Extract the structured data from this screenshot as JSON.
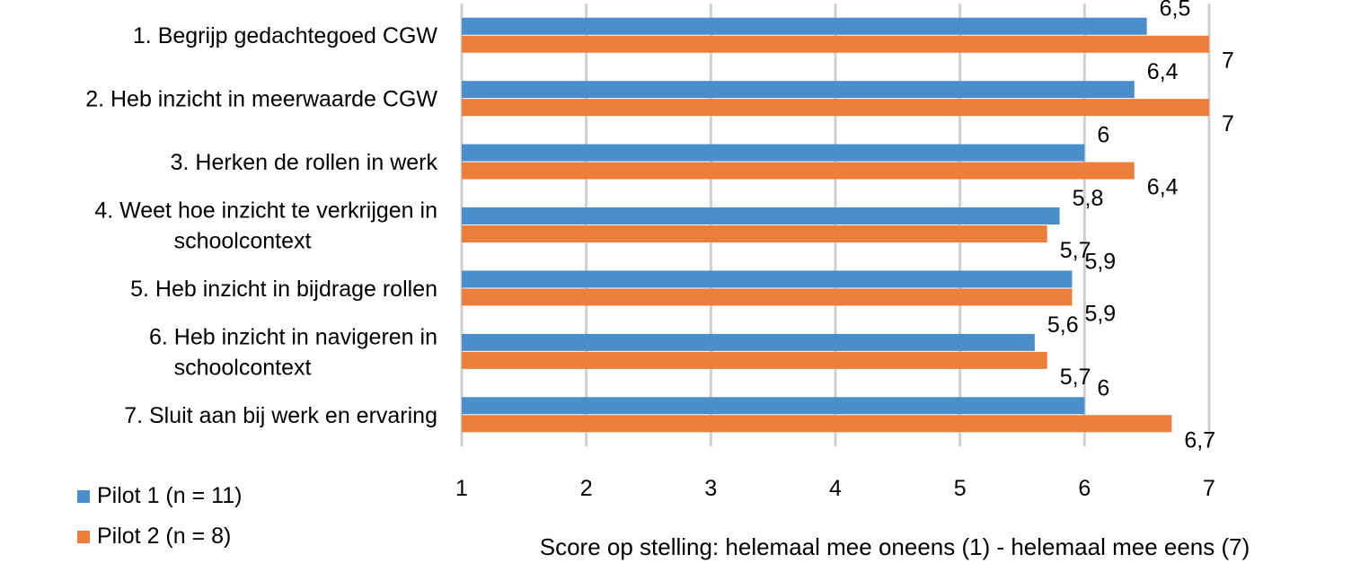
{
  "chart_data": {
    "type": "bar",
    "orientation": "horizontal",
    "categories": [
      "1. Begrijp gedachtegoed CGW",
      "2. Heb inzicht in meerwaarde CGW",
      "3. Herken de rollen in werk",
      [
        "4. Weet hoe inzicht te verkrijgen in",
        "schoolcontext"
      ],
      "5. Heb inzicht in bijdrage rollen",
      [
        "6. Heb inzicht in navigeren in",
        "schoolcontext"
      ],
      "7. Sluit aan bij werk en ervaring"
    ],
    "series": [
      {
        "name": "Pilot 1 (n = 11)",
        "color": "#4a8ecb",
        "values": [
          6.5,
          6.4,
          6,
          5.8,
          5.9,
          5.6,
          6
        ],
        "labels": [
          "6,5",
          "6,4",
          "6",
          "5,8",
          "5,9",
          "5,6",
          "6"
        ]
      },
      {
        "name": "Pilot 2 (n = 8)",
        "color": "#ec7d3a",
        "values": [
          7,
          7,
          6.4,
          5.7,
          5.9,
          5.7,
          6.7
        ],
        "labels": [
          "7",
          "7",
          "6,4",
          "5,7",
          "5,9",
          "5,7",
          "6,7"
        ]
      }
    ],
    "xlim": [
      1,
      7
    ],
    "xticks": [
      "1",
      "2",
      "3",
      "4",
      "5",
      "6",
      "7"
    ],
    "xlabel": "Score op stelling: helemaal mee oneens (1) - helemaal mee eens (7)",
    "title": "",
    "grid": true,
    "gridColor": "#d0d0d0",
    "legend_position": "bottom-left"
  }
}
